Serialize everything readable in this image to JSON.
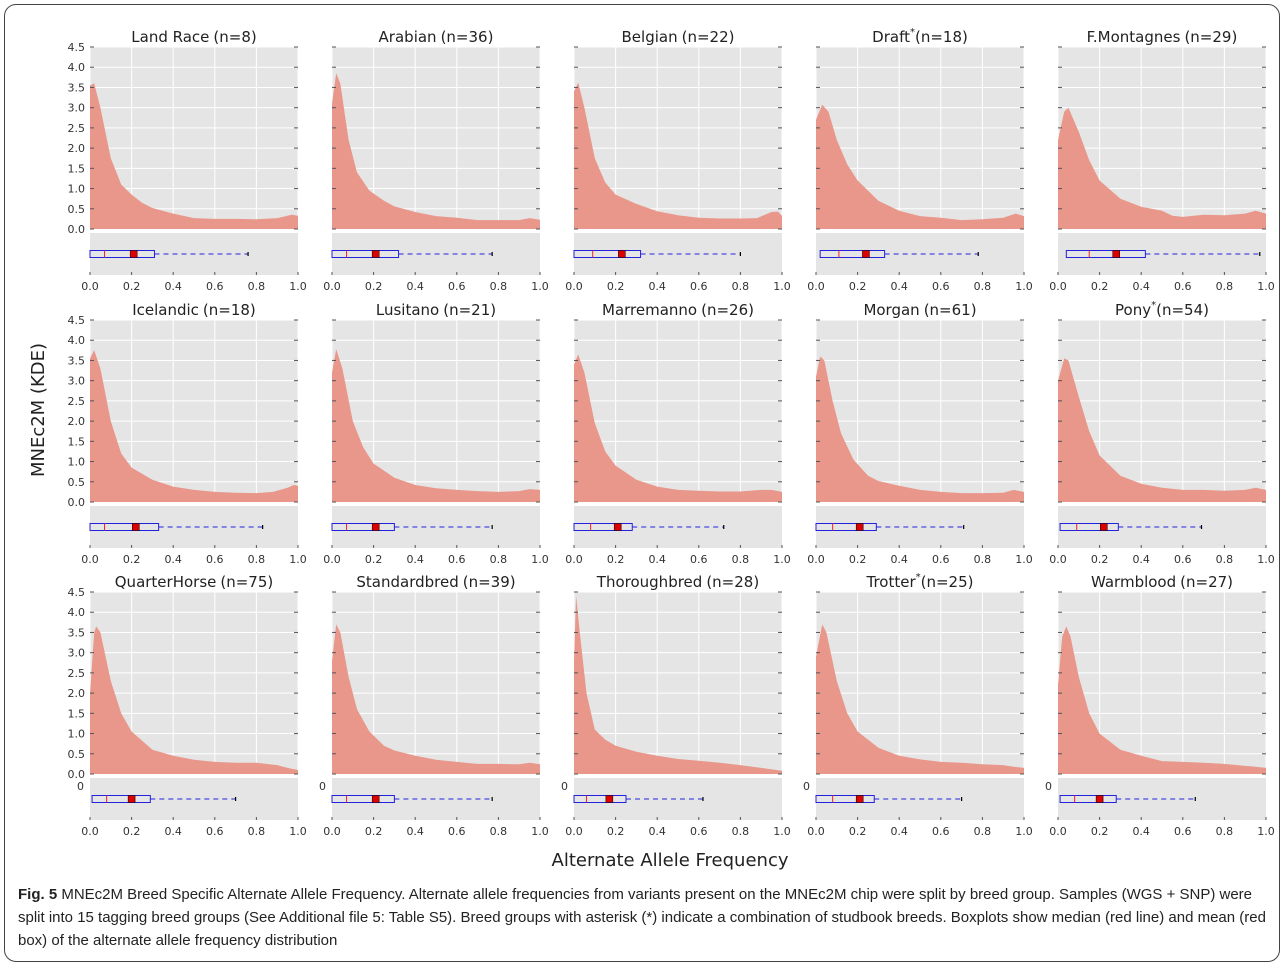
{
  "figure": {
    "ylabel": "MNEc2M (KDE)",
    "xlabel": "Alternate Allele Frequency"
  },
  "caption": {
    "label": "Fig. 5",
    "text": " MNEc2M Breed Specific Alternate Allele Frequency. Alternate allele frequencies from variants present on the MNEc2M chip were split by breed group. Samples (WGS + SNP) were split into 15 tagging breed groups (See Additional file 5: Table S5). Breed groups with asterisk (*) indicate a combination of studbook breeds. Boxplots show median (red line) and mean (red box) of the alternate allele frequency distribution"
  },
  "colors": {
    "panel_bg": "#e5e5e5",
    "kde_fill": "#e8978a",
    "box_edge": "#2222dd",
    "median": "#ee2222",
    "mean": "#dd0000"
  },
  "chart_data": {
    "type": "area",
    "xlim": [
      0.0,
      1.0
    ],
    "ylim": [
      0.0,
      4.5
    ],
    "xticks": [
      "0.0",
      "0.2",
      "0.4",
      "0.6",
      "0.8",
      "1.0"
    ],
    "yticks": [
      "0.0",
      "0.5",
      "1.0",
      "1.5",
      "2.0",
      "2.5",
      "3.0",
      "3.5",
      "4.0",
      "4.5"
    ],
    "grid": true,
    "panels": [
      {
        "name": "Land Race",
        "n": "(n=8)",
        "star": false,
        "box_zero_label": false,
        "kde": [
          [
            0,
            3.55
          ],
          [
            0.02,
            3.6
          ],
          [
            0.05,
            3.0
          ],
          [
            0.1,
            1.75
          ],
          [
            0.15,
            1.1
          ],
          [
            0.2,
            0.85
          ],
          [
            0.25,
            0.65
          ],
          [
            0.3,
            0.52
          ],
          [
            0.4,
            0.38
          ],
          [
            0.5,
            0.27
          ],
          [
            0.6,
            0.25
          ],
          [
            0.7,
            0.25
          ],
          [
            0.8,
            0.24
          ],
          [
            0.9,
            0.27
          ],
          [
            0.97,
            0.35
          ],
          [
            1.0,
            0.33
          ]
        ],
        "box": {
          "q1": 0.0,
          "median": 0.07,
          "mean": 0.21,
          "q3": 0.31,
          "whisker_hi": 0.76
        }
      },
      {
        "name": "Arabian",
        "n": "(n=36)",
        "star": false,
        "box_zero_label": false,
        "kde": [
          [
            0,
            3.1
          ],
          [
            0.02,
            3.85
          ],
          [
            0.04,
            3.6
          ],
          [
            0.08,
            2.2
          ],
          [
            0.12,
            1.4
          ],
          [
            0.18,
            0.95
          ],
          [
            0.25,
            0.7
          ],
          [
            0.3,
            0.56
          ],
          [
            0.4,
            0.42
          ],
          [
            0.5,
            0.32
          ],
          [
            0.6,
            0.28
          ],
          [
            0.7,
            0.22
          ],
          [
            0.8,
            0.22
          ],
          [
            0.9,
            0.22
          ],
          [
            0.95,
            0.27
          ],
          [
            1.0,
            0.23
          ]
        ],
        "box": {
          "q1": 0.0,
          "median": 0.07,
          "mean": 0.21,
          "q3": 0.32,
          "whisker_hi": 0.77
        }
      },
      {
        "name": "Belgian",
        "n": "(n=22)",
        "star": false,
        "box_zero_label": false,
        "kde": [
          [
            0,
            3.4
          ],
          [
            0.02,
            3.62
          ],
          [
            0.05,
            3.0
          ],
          [
            0.1,
            1.75
          ],
          [
            0.15,
            1.15
          ],
          [
            0.2,
            0.85
          ],
          [
            0.3,
            0.62
          ],
          [
            0.4,
            0.44
          ],
          [
            0.5,
            0.34
          ],
          [
            0.6,
            0.28
          ],
          [
            0.7,
            0.26
          ],
          [
            0.8,
            0.26
          ],
          [
            0.88,
            0.27
          ],
          [
            0.95,
            0.42
          ],
          [
            0.98,
            0.43
          ],
          [
            1.0,
            0.33
          ]
        ],
        "box": {
          "q1": 0.0,
          "median": 0.09,
          "mean": 0.23,
          "q3": 0.32,
          "whisker_hi": 0.8
        }
      },
      {
        "name": "Draft",
        "n": "(n=18)",
        "star": true,
        "box_zero_label": false,
        "kde": [
          [
            0,
            2.7
          ],
          [
            0.03,
            3.07
          ],
          [
            0.06,
            2.9
          ],
          [
            0.1,
            2.2
          ],
          [
            0.15,
            1.6
          ],
          [
            0.2,
            1.2
          ],
          [
            0.3,
            0.7
          ],
          [
            0.4,
            0.45
          ],
          [
            0.5,
            0.32
          ],
          [
            0.6,
            0.28
          ],
          [
            0.7,
            0.22
          ],
          [
            0.8,
            0.24
          ],
          [
            0.9,
            0.28
          ],
          [
            0.96,
            0.38
          ],
          [
            1.0,
            0.32
          ]
        ],
        "box": {
          "q1": 0.02,
          "median": 0.11,
          "mean": 0.24,
          "q3": 0.33,
          "whisker_hi": 0.78
        }
      },
      {
        "name": "F.Montagnes",
        "n": "(n=29)",
        "star": false,
        "box_zero_label": false,
        "kde": [
          [
            0,
            2.2
          ],
          [
            0.03,
            2.9
          ],
          [
            0.05,
            3.0
          ],
          [
            0.1,
            2.4
          ],
          [
            0.15,
            1.7
          ],
          [
            0.2,
            1.2
          ],
          [
            0.3,
            0.75
          ],
          [
            0.4,
            0.55
          ],
          [
            0.5,
            0.45
          ],
          [
            0.55,
            0.33
          ],
          [
            0.6,
            0.3
          ],
          [
            0.7,
            0.35
          ],
          [
            0.8,
            0.34
          ],
          [
            0.9,
            0.38
          ],
          [
            0.95,
            0.45
          ],
          [
            1.0,
            0.38
          ]
        ],
        "box": {
          "q1": 0.04,
          "median": 0.15,
          "mean": 0.28,
          "q3": 0.42,
          "whisker_hi": 0.97
        }
      },
      {
        "name": "Icelandic",
        "n": "(n=18)",
        "star": false,
        "box_zero_label": false,
        "kde": [
          [
            0,
            3.55
          ],
          [
            0.02,
            3.75
          ],
          [
            0.05,
            3.3
          ],
          [
            0.1,
            2.0
          ],
          [
            0.15,
            1.2
          ],
          [
            0.2,
            0.85
          ],
          [
            0.3,
            0.55
          ],
          [
            0.4,
            0.38
          ],
          [
            0.5,
            0.3
          ],
          [
            0.6,
            0.25
          ],
          [
            0.7,
            0.23
          ],
          [
            0.8,
            0.22
          ],
          [
            0.88,
            0.25
          ],
          [
            0.95,
            0.35
          ],
          [
            0.98,
            0.42
          ],
          [
            1.0,
            0.4
          ]
        ],
        "box": {
          "q1": 0.0,
          "median": 0.07,
          "mean": 0.22,
          "q3": 0.33,
          "whisker_hi": 0.83
        }
      },
      {
        "name": "Lusitano",
        "n": "(n=21)",
        "star": false,
        "box_zero_label": false,
        "kde": [
          [
            0,
            3.2
          ],
          [
            0.02,
            3.78
          ],
          [
            0.05,
            3.3
          ],
          [
            0.1,
            2.0
          ],
          [
            0.15,
            1.35
          ],
          [
            0.2,
            0.95
          ],
          [
            0.3,
            0.6
          ],
          [
            0.4,
            0.42
          ],
          [
            0.5,
            0.34
          ],
          [
            0.6,
            0.3
          ],
          [
            0.7,
            0.27
          ],
          [
            0.8,
            0.25
          ],
          [
            0.9,
            0.27
          ],
          [
            0.95,
            0.32
          ],
          [
            1.0,
            0.3
          ]
        ],
        "box": {
          "q1": 0.0,
          "median": 0.07,
          "mean": 0.21,
          "q3": 0.3,
          "whisker_hi": 0.77
        }
      },
      {
        "name": "Marremanno",
        "n": "(n=26)",
        "star": false,
        "box_zero_label": false,
        "kde": [
          [
            0,
            3.4
          ],
          [
            0.02,
            3.65
          ],
          [
            0.05,
            3.2
          ],
          [
            0.1,
            1.95
          ],
          [
            0.15,
            1.25
          ],
          [
            0.2,
            0.9
          ],
          [
            0.3,
            0.55
          ],
          [
            0.4,
            0.38
          ],
          [
            0.5,
            0.3
          ],
          [
            0.6,
            0.28
          ],
          [
            0.7,
            0.26
          ],
          [
            0.8,
            0.26
          ],
          [
            0.9,
            0.3
          ],
          [
            0.95,
            0.3
          ],
          [
            1.0,
            0.25
          ]
        ],
        "box": {
          "q1": 0.0,
          "median": 0.08,
          "mean": 0.21,
          "q3": 0.28,
          "whisker_hi": 0.72
        }
      },
      {
        "name": "Morgan",
        "n": "(n=61)",
        "star": false,
        "box_zero_label": false,
        "kde": [
          [
            0,
            3.1
          ],
          [
            0.02,
            3.6
          ],
          [
            0.04,
            3.5
          ],
          [
            0.08,
            2.5
          ],
          [
            0.12,
            1.7
          ],
          [
            0.18,
            1.05
          ],
          [
            0.25,
            0.65
          ],
          [
            0.3,
            0.52
          ],
          [
            0.4,
            0.4
          ],
          [
            0.5,
            0.3
          ],
          [
            0.6,
            0.25
          ],
          [
            0.7,
            0.22
          ],
          [
            0.8,
            0.22
          ],
          [
            0.9,
            0.23
          ],
          [
            0.95,
            0.3
          ],
          [
            1.0,
            0.25
          ]
        ],
        "box": {
          "q1": 0.0,
          "median": 0.08,
          "mean": 0.21,
          "q3": 0.29,
          "whisker_hi": 0.71
        }
      },
      {
        "name": "Pony",
        "n": "(n=54)",
        "star": true,
        "box_zero_label": false,
        "kde": [
          [
            0,
            3.0
          ],
          [
            0.03,
            3.55
          ],
          [
            0.05,
            3.5
          ],
          [
            0.1,
            2.6
          ],
          [
            0.15,
            1.75
          ],
          [
            0.2,
            1.15
          ],
          [
            0.3,
            0.65
          ],
          [
            0.4,
            0.45
          ],
          [
            0.5,
            0.35
          ],
          [
            0.6,
            0.3
          ],
          [
            0.7,
            0.3
          ],
          [
            0.8,
            0.28
          ],
          [
            0.9,
            0.3
          ],
          [
            0.95,
            0.35
          ],
          [
            1.0,
            0.3
          ]
        ],
        "box": {
          "q1": 0.01,
          "median": 0.09,
          "mean": 0.22,
          "q3": 0.29,
          "whisker_hi": 0.69
        }
      },
      {
        "name": "QuarterHorse",
        "n": "(n=75)",
        "star": false,
        "box_zero_label": true,
        "kde": [
          [
            0,
            2.0
          ],
          [
            0.02,
            3.5
          ],
          [
            0.03,
            3.65
          ],
          [
            0.05,
            3.5
          ],
          [
            0.1,
            2.3
          ],
          [
            0.15,
            1.5
          ],
          [
            0.2,
            1.05
          ],
          [
            0.3,
            0.6
          ],
          [
            0.4,
            0.45
          ],
          [
            0.5,
            0.35
          ],
          [
            0.6,
            0.3
          ],
          [
            0.7,
            0.28
          ],
          [
            0.8,
            0.28
          ],
          [
            0.9,
            0.22
          ],
          [
            0.95,
            0.15
          ],
          [
            1.0,
            0.1
          ]
        ],
        "box": {
          "q1": 0.01,
          "median": 0.08,
          "mean": 0.2,
          "q3": 0.29,
          "whisker_hi": 0.7
        }
      },
      {
        "name": "Standardbred",
        "n": "(n=39)",
        "star": false,
        "box_zero_label": true,
        "kde": [
          [
            0,
            2.8
          ],
          [
            0.02,
            3.7
          ],
          [
            0.04,
            3.5
          ],
          [
            0.08,
            2.4
          ],
          [
            0.12,
            1.6
          ],
          [
            0.18,
            1.05
          ],
          [
            0.25,
            0.7
          ],
          [
            0.3,
            0.58
          ],
          [
            0.4,
            0.45
          ],
          [
            0.5,
            0.35
          ],
          [
            0.6,
            0.3
          ],
          [
            0.7,
            0.25
          ],
          [
            0.8,
            0.25
          ],
          [
            0.9,
            0.24
          ],
          [
            0.95,
            0.28
          ],
          [
            1.0,
            0.24
          ]
        ],
        "box": {
          "q1": 0.0,
          "median": 0.07,
          "mean": 0.21,
          "q3": 0.3,
          "whisker_hi": 0.77
        }
      },
      {
        "name": "Thoroughbred",
        "n": "(n=28)",
        "star": false,
        "box_zero_label": true,
        "kde": [
          [
            0,
            2.8
          ],
          [
            0.01,
            4.4
          ],
          [
            0.03,
            3.4
          ],
          [
            0.06,
            2.0
          ],
          [
            0.1,
            1.1
          ],
          [
            0.15,
            0.85
          ],
          [
            0.2,
            0.7
          ],
          [
            0.3,
            0.55
          ],
          [
            0.4,
            0.45
          ],
          [
            0.5,
            0.37
          ],
          [
            0.6,
            0.33
          ],
          [
            0.7,
            0.28
          ],
          [
            0.8,
            0.22
          ],
          [
            0.9,
            0.15
          ],
          [
            1.0,
            0.08
          ]
        ],
        "box": {
          "q1": 0.0,
          "median": 0.06,
          "mean": 0.17,
          "q3": 0.25,
          "whisker_hi": 0.62
        }
      },
      {
        "name": "Trotter",
        "n": "(n=25)",
        "star": true,
        "box_zero_label": true,
        "kde": [
          [
            0,
            2.9
          ],
          [
            0.03,
            3.7
          ],
          [
            0.05,
            3.5
          ],
          [
            0.1,
            2.3
          ],
          [
            0.15,
            1.5
          ],
          [
            0.2,
            1.05
          ],
          [
            0.3,
            0.65
          ],
          [
            0.4,
            0.45
          ],
          [
            0.5,
            0.36
          ],
          [
            0.6,
            0.3
          ],
          [
            0.7,
            0.28
          ],
          [
            0.8,
            0.24
          ],
          [
            0.9,
            0.22
          ],
          [
            0.95,
            0.18
          ],
          [
            1.0,
            0.15
          ]
        ],
        "box": {
          "q1": 0.0,
          "median": 0.08,
          "mean": 0.21,
          "q3": 0.28,
          "whisker_hi": 0.7
        }
      },
      {
        "name": "Warmblood",
        "n": "(n=27)",
        "star": false,
        "box_zero_label": true,
        "kde": [
          [
            0,
            2.2
          ],
          [
            0.02,
            3.4
          ],
          [
            0.04,
            3.65
          ],
          [
            0.06,
            3.4
          ],
          [
            0.1,
            2.4
          ],
          [
            0.15,
            1.5
          ],
          [
            0.2,
            1.0
          ],
          [
            0.3,
            0.6
          ],
          [
            0.4,
            0.45
          ],
          [
            0.5,
            0.32
          ],
          [
            0.6,
            0.3
          ],
          [
            0.7,
            0.28
          ],
          [
            0.8,
            0.25
          ],
          [
            0.9,
            0.2
          ],
          [
            0.95,
            0.18
          ],
          [
            1.0,
            0.15
          ]
        ],
        "box": {
          "q1": 0.01,
          "median": 0.08,
          "mean": 0.2,
          "q3": 0.28,
          "whisker_hi": 0.66
        }
      }
    ]
  }
}
